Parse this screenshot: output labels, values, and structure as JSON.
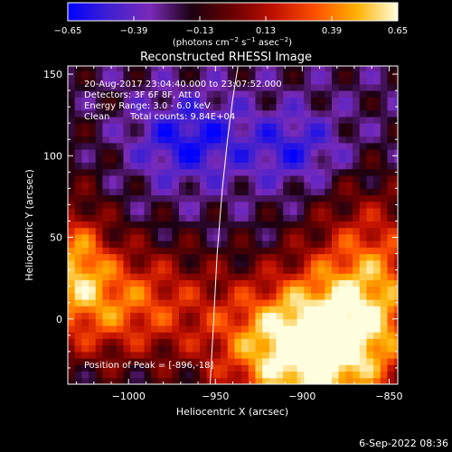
{
  "chart_data": {
    "type": "heatmap",
    "title": "Reconstructed RHESSI Image",
    "xlabel": "Heliocentric X (arcsec)",
    "ylabel": "Heliocentric Y (arcsec)",
    "xlim": [
      -1035,
      -845
    ],
    "ylim": [
      -40,
      155
    ],
    "x_ticks": [
      -1000,
      -950,
      -900,
      -850
    ],
    "x_tick_labels": [
      "−1000",
      "−950",
      "−900",
      "−850"
    ],
    "y_ticks": [
      0,
      50,
      100,
      150
    ],
    "y_tick_labels": [
      "0",
      "50",
      "100",
      "150"
    ],
    "colorbar": {
      "range": [
        -0.65,
        0.65
      ],
      "ticks": [
        -0.65,
        -0.39,
        -0.13,
        0.13,
        0.39,
        0.65
      ],
      "tick_labels": [
        "−0.65",
        "−0.39",
        "−0.13",
        "0.13",
        "0.39",
        "0.65"
      ],
      "label_parts": {
        "a": "(photons cm",
        "a_sup": "−2",
        "b": " s",
        "b_sup": "−1",
        "c": " asec",
        "c_sup": "−2",
        "d": ")"
      },
      "colors": [
        "#0000ff",
        "#4020d0",
        "#7a2ab8",
        "#1a0010",
        "#6a0000",
        "#c01000",
        "#ff5000",
        "#ffb000",
        "#ffffe0"
      ]
    },
    "annotations": {
      "time_range": "20-Aug-2017 23:04:40.000 to 23:07:52.000",
      "detectors": "Detectors: 3F 6F 8F, Att 0",
      "energy": "Energy Range: 3.0 - 6.0 keV",
      "method": "Clean",
      "counts": "Total counts: 9.84E+04",
      "peak": "Position of Peak = [-896,-18]"
    },
    "limb_x": [
      -953,
      -951,
      -949,
      -946,
      -943,
      -940,
      -937
    ],
    "limb_y": [
      -40,
      0,
      40,
      80,
      110,
      135,
      155
    ],
    "peak": {
      "x": -896,
      "y": -18
    }
  },
  "footer": {
    "date": "6-Sep-2022 08:36"
  }
}
